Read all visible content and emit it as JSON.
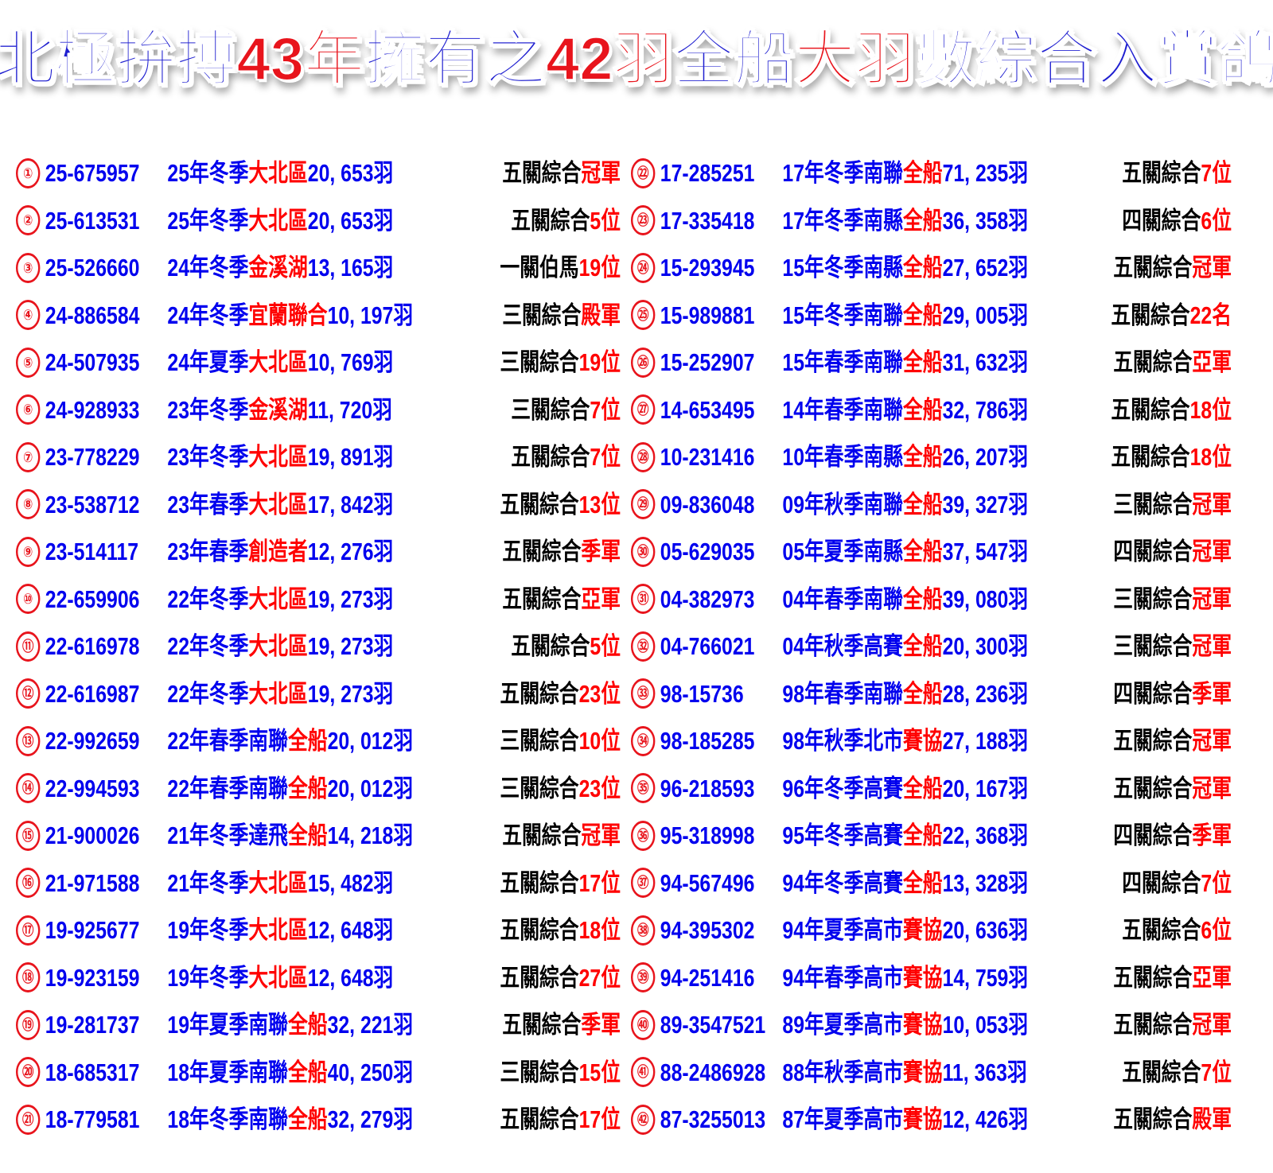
{
  "title": {
    "parts": [
      {
        "text": "北極拚搏",
        "color": "blue"
      },
      {
        "text": "43年",
        "color": "red"
      },
      {
        "text": "擁有之",
        "color": "blue"
      },
      {
        "text": "42羽",
        "color": "red"
      },
      {
        "text": "全船",
        "color": "blue"
      },
      {
        "text": "大羽",
        "color": "red"
      },
      {
        "text": "數綜合入賞鴿",
        "color": "blue"
      }
    ]
  },
  "colors": {
    "blue": "#0000ee",
    "red": "#ff0000",
    "black": "#000000",
    "title_blue": "#1f1fd0"
  },
  "entries": [
    {
      "n": "①",
      "id": "25-675957",
      "a": "25年冬季",
      "r": "大北區",
      "c": "20, 653羽",
      "b": "五關綜合",
      "p": "冠軍"
    },
    {
      "n": "②",
      "id": "25-613531",
      "a": "25年冬季",
      "r": "大北區",
      "c": "20, 653羽",
      "b": "五關綜合",
      "p": "5位"
    },
    {
      "n": "③",
      "id": "25-526660",
      "a": "24年冬季",
      "r": "金溪湖",
      "c": "13, 165羽",
      "b": "一關伯馬",
      "p": "19位"
    },
    {
      "n": "④",
      "id": "24-886584",
      "a": "24年冬季",
      "r": "宜蘭聯合",
      "c": "10, 197羽",
      "b": "三關綜合",
      "p": "殿軍"
    },
    {
      "n": "⑤",
      "id": "24-507935",
      "a": "24年夏季",
      "r": "大北區",
      "c": "10, 769羽",
      "b": "三關綜合",
      "p": "19位"
    },
    {
      "n": "⑥",
      "id": "24-928933",
      "a": "23年冬季",
      "r": "金溪湖",
      "c": "11, 720羽",
      "b": "三關綜合",
      "p": "7位"
    },
    {
      "n": "⑦",
      "id": "23-778229",
      "a": "23年冬季",
      "r": "大北區",
      "c": "19, 891羽",
      "b": "五關綜合",
      "p": "7位"
    },
    {
      "n": "⑧",
      "id": "23-538712",
      "a": "23年春季",
      "r": "大北區",
      "c": "17, 842羽",
      "b": "五關綜合",
      "p": "13位"
    },
    {
      "n": "⑨",
      "id": "23-514117",
      "a": "23年春季",
      "r": "創造者",
      "c": "12, 276羽",
      "b": "五關綜合",
      "p": "季軍"
    },
    {
      "n": "⑩",
      "id": "22-659906",
      "a": "22年冬季",
      "r": "大北區",
      "c": "19, 273羽",
      "b": "五關綜合",
      "p": "亞軍"
    },
    {
      "n": "⑪",
      "id": "22-616978",
      "a": "22年冬季",
      "r": "大北區",
      "c": "19, 273羽",
      "b": "五關綜合",
      "p": "5位"
    },
    {
      "n": "⑫",
      "id": "22-616987",
      "a": "22年冬季",
      "r": "大北區",
      "c": "19, 273羽",
      "b": "五關綜合",
      "p": "23位"
    },
    {
      "n": "⑬",
      "id": "22-992659",
      "a": "22年春季南聯",
      "r": "全船",
      "c": "20, 012羽",
      "b": "三關綜合",
      "p": "10位"
    },
    {
      "n": "⑭",
      "id": "22-994593",
      "a": "22年春季南聯",
      "r": "全船",
      "c": "20, 012羽",
      "b": "三關綜合",
      "p": "23位"
    },
    {
      "n": "⑮",
      "id": "21-900026",
      "a": "21年冬季達飛",
      "r": "全船",
      "c": "14, 218羽",
      "b": "五關綜合",
      "p": "冠軍"
    },
    {
      "n": "⑯",
      "id": "21-971588",
      "a": "21年冬季",
      "r": "大北區",
      "c": "15, 482羽",
      "b": "五關綜合",
      "p": "17位"
    },
    {
      "n": "⑰",
      "id": "19-925677",
      "a": "19年冬季",
      "r": "大北區",
      "c": "12, 648羽",
      "b": "五關綜合",
      "p": "18位"
    },
    {
      "n": "⑱",
      "id": "19-923159",
      "a": "19年冬季",
      "r": "大北區",
      "c": "12, 648羽",
      "b": "五關綜合",
      "p": "27位"
    },
    {
      "n": "⑲",
      "id": "19-281737",
      "a": "19年夏季南聯",
      "r": "全船",
      "c": "32, 221羽",
      "b": "五關綜合",
      "p": "季軍"
    },
    {
      "n": "⑳",
      "id": "18-685317",
      "a": "18年夏季南聯",
      "r": "全船",
      "c": "40, 250羽",
      "b": "三關綜合",
      "p": "15位"
    },
    {
      "n": "㉑",
      "id": "18-779581",
      "a": "18年冬季南聯",
      "r": "全船",
      "c": "32, 279羽",
      "b": "五關綜合",
      "p": "17位"
    },
    {
      "n": "㉒",
      "id": "17-285251",
      "a": "17年冬季南聯",
      "r": "全船",
      "c": "71, 235羽",
      "b": "五關綜合",
      "p": "7位"
    },
    {
      "n": "㉓",
      "id": "17-335418",
      "a": "17年冬季南縣",
      "r": "全船",
      "c": "36, 358羽",
      "b": "四關綜合",
      "p": "6位"
    },
    {
      "n": "㉔",
      "id": "15-293945",
      "a": "15年冬季南縣",
      "r": "全船",
      "c": "27, 652羽",
      "b": "五關綜合",
      "p": "冠軍"
    },
    {
      "n": "㉕",
      "id": "15-989881",
      "a": "15年冬季南聯",
      "r": "全船",
      "c": "29, 005羽",
      "b": "五關綜合",
      "p": "22名"
    },
    {
      "n": "㉖",
      "id": "15-252907",
      "a": "15年春季南聯",
      "r": "全船",
      "c": "31, 632羽",
      "b": "五關綜合",
      "p": "亞軍"
    },
    {
      "n": "㉗",
      "id": "14-653495",
      "a": "14年春季南聯",
      "r": "全船",
      "c": "32, 786羽",
      "b": "五關綜合",
      "p": "18位"
    },
    {
      "n": "㉘",
      "id": "10-231416",
      "a": "10年春季南縣",
      "r": "全船",
      "c": "26, 207羽",
      "b": "五關綜合",
      "p": "18位"
    },
    {
      "n": "㉙",
      "id": "09-836048",
      "a": "09年秋季南聯",
      "r": "全船",
      "c": "39, 327羽",
      "b": "三關綜合",
      "p": "冠軍"
    },
    {
      "n": "㉚",
      "id": "05-629035",
      "a": "05年夏季南縣",
      "r": "全船",
      "c": "37, 547羽",
      "b": "四關綜合",
      "p": "冠軍"
    },
    {
      "n": "㉛",
      "id": "04-382973",
      "a": "04年春季南聯",
      "r": "全船",
      "c": "39, 080羽",
      "b": "三關綜合",
      "p": "冠軍"
    },
    {
      "n": "㉜",
      "id": "04-766021",
      "a": "04年秋季高賽",
      "r": "全船",
      "c": "20, 300羽",
      "b": "三關綜合",
      "p": "冠軍"
    },
    {
      "n": "㉝",
      "id": "98-15736",
      "a": "98年春季南聯",
      "r": "全船",
      "c": "28, 236羽",
      "b": "四關綜合",
      "p": "季軍"
    },
    {
      "n": "㉞",
      "id": "98-185285",
      "a": "98年秋季北市",
      "r": "賽協",
      "c": "27, 188羽",
      "b": "五關綜合",
      "p": "冠軍"
    },
    {
      "n": "㉟",
      "id": "96-218593",
      "a": "96年冬季高賽",
      "r": "全船",
      "c": "20, 167羽",
      "b": "五關綜合",
      "p": "冠軍"
    },
    {
      "n": "㊱",
      "id": "95-318998",
      "a": "95年冬季高賽",
      "r": "全船",
      "c": "22, 368羽",
      "b": "四關綜合",
      "p": "季軍"
    },
    {
      "n": "㊲",
      "id": "94-567496",
      "a": "94年冬季高賽",
      "r": "全船",
      "c": "13, 328羽",
      "b": "四關綜合",
      "p": "7位"
    },
    {
      "n": "㊳",
      "id": "94-395302",
      "a": "94年夏季高市",
      "r": "賽協",
      "c": "20, 636羽",
      "b": "五關綜合",
      "p": "6位"
    },
    {
      "n": "㊴",
      "id": "94-251416",
      "a": "94年春季高市",
      "r": "賽協",
      "c": "14, 759羽",
      "b": "五關綜合",
      "p": "亞軍"
    },
    {
      "n": "㊵",
      "id": "89-3547521",
      "a": "89年夏季高市",
      "r": "賽協",
      "c": "10, 053羽",
      "b": "五關綜合",
      "p": "冠軍"
    },
    {
      "n": "㊶",
      "id": "88-2486928",
      "a": "88年秋季高市",
      "r": "賽協",
      "c": "11, 363羽",
      "b": "五關綜合",
      "p": "7位"
    },
    {
      "n": "㊷",
      "id": "87-3255013",
      "a": "87年夏季高市",
      "r": "賽協",
      "c": "12, 426羽",
      "b": "五關綜合",
      "p": "殿軍"
    }
  ]
}
